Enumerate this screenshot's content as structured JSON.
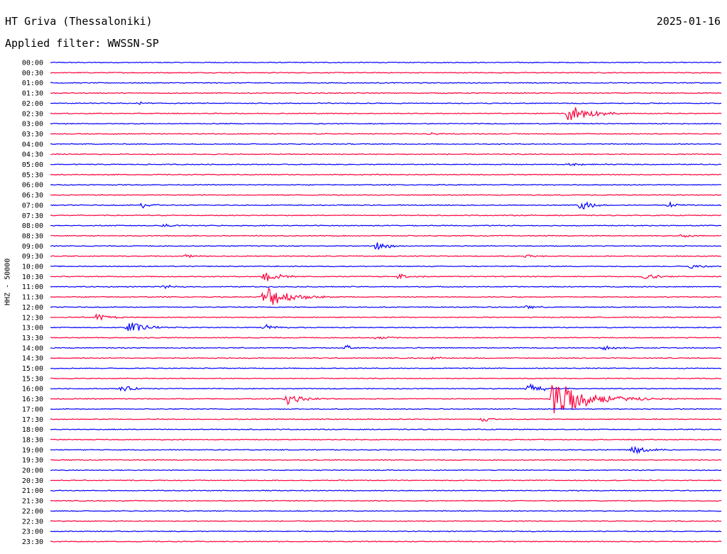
{
  "header": {
    "station": "HT Griva (Thessaloniki)",
    "date": "2025-01-16",
    "filter": "Applied filter: WWSSN-SP"
  },
  "y_axis_label": "HHZ - 50000",
  "colors": {
    "blue": "#0000ff",
    "red": "#ff003c"
  },
  "chart_data": {
    "type": "line",
    "title": "HT Griva (Thessaloniki)",
    "subtitle": "Applied filter: WWSSN-SP",
    "ylabel": "HHZ - 50000",
    "trace_labels": [
      "00:00",
      "00:30",
      "01:00",
      "01:30",
      "02:00",
      "02:30",
      "03:00",
      "03:30",
      "04:00",
      "04:30",
      "05:00",
      "05:30",
      "06:00",
      "06:30",
      "07:00",
      "07:30",
      "08:00",
      "08:30",
      "09:00",
      "09:30",
      "10:00",
      "10:30",
      "11:00",
      "11:30",
      "12:00",
      "12:30",
      "13:00",
      "13:30",
      "14:00",
      "14:30",
      "15:00",
      "15:30",
      "16:00",
      "16:30",
      "17:00",
      "17:30",
      "18:00",
      "18:30",
      "19:00",
      "19:30",
      "20:00",
      "20:30",
      "21:00",
      "21:30",
      "22:00",
      "22:30",
      "23:00",
      "23:30"
    ],
    "trace_color_cycle": [
      "blue",
      "red"
    ],
    "minutes_per_trace": 30,
    "events": [
      {
        "trace": "02:00",
        "minute": 4,
        "amplitude": 0.25
      },
      {
        "trace": "02:00",
        "minute": 12,
        "amplitude": 0.2
      },
      {
        "trace": "02:30",
        "minute": 23.2,
        "amplitude": 1.9
      },
      {
        "trace": "03:30",
        "minute": 17,
        "amplitude": 0.3
      },
      {
        "trace": "05:00",
        "minute": 23.3,
        "amplitude": 0.3
      },
      {
        "trace": "07:00",
        "minute": 4.1,
        "amplitude": 0.55
      },
      {
        "trace": "07:00",
        "minute": 23.7,
        "amplitude": 0.9
      },
      {
        "trace": "07:00",
        "minute": 27.7,
        "amplitude": 0.5
      },
      {
        "trace": "08:00",
        "minute": 5.1,
        "amplitude": 0.4
      },
      {
        "trace": "08:30",
        "minute": 28.2,
        "amplitude": 0.35
      },
      {
        "trace": "09:00",
        "minute": 14.6,
        "amplitude": 0.9
      },
      {
        "trace": "09:30",
        "minute": 6.1,
        "amplitude": 0.35
      },
      {
        "trace": "09:30",
        "minute": 21.3,
        "amplitude": 0.35
      },
      {
        "trace": "10:00",
        "minute": 28.6,
        "amplitude": 0.5
      },
      {
        "trace": "10:30",
        "minute": 9.6,
        "amplitude": 1.1
      },
      {
        "trace": "10:30",
        "minute": 15.6,
        "amplitude": 0.5
      },
      {
        "trace": "10:30",
        "minute": 26.6,
        "amplitude": 0.6
      },
      {
        "trace": "11:00",
        "minute": 5.1,
        "amplitude": 0.35
      },
      {
        "trace": "11:30",
        "minute": 9.6,
        "amplitude": 2.4
      },
      {
        "trace": "12:00",
        "minute": 21.3,
        "amplitude": 0.35
      },
      {
        "trace": "12:30",
        "minute": 2.1,
        "amplitude": 0.7
      },
      {
        "trace": "13:00",
        "minute": 3.5,
        "amplitude": 1.3
      },
      {
        "trace": "13:00",
        "minute": 9.6,
        "amplitude": 0.6
      },
      {
        "trace": "13:30",
        "minute": 14.6,
        "amplitude": 0.4
      },
      {
        "trace": "14:00",
        "minute": 13.2,
        "amplitude": 0.55
      },
      {
        "trace": "14:00",
        "minute": 24.7,
        "amplitude": 0.5
      },
      {
        "trace": "14:30",
        "minute": 17.1,
        "amplitude": 0.3
      },
      {
        "trace": "16:00",
        "minute": 3.2,
        "amplitude": 0.6
      },
      {
        "trace": "16:00",
        "minute": 21.4,
        "amplitude": 1.0
      },
      {
        "trace": "16:30",
        "minute": 10.6,
        "amplitude": 1.1
      },
      {
        "trace": "16:30",
        "minute": 22.5,
        "amplitude": 3.9
      },
      {
        "trace": "17:30",
        "minute": 19.3,
        "amplitude": 0.5
      },
      {
        "trace": "19:00",
        "minute": 26.1,
        "amplitude": 0.8
      }
    ]
  }
}
